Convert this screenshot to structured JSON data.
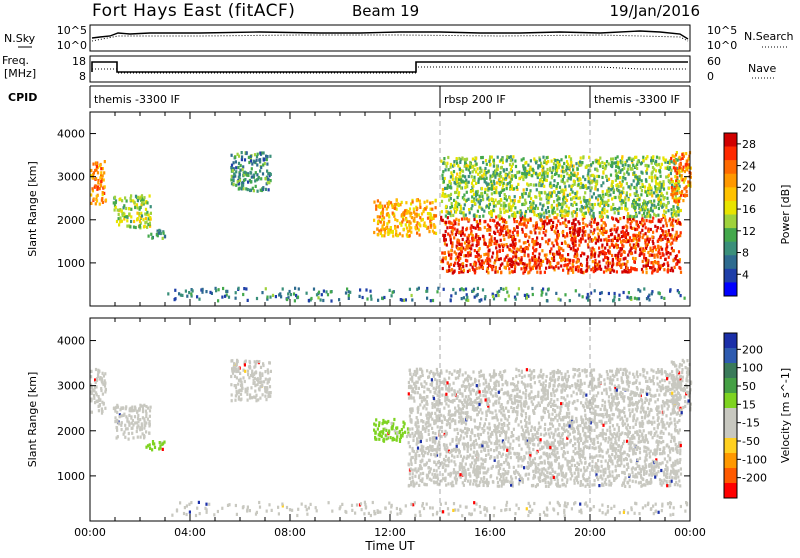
{
  "header": {
    "radar_title": "Fort Hays East (fitACF)",
    "beam": "Beam 19",
    "date": "19/Jan/2016"
  },
  "time_axis": {
    "label": "Time UT",
    "ticks": [
      "00:00",
      "04:00",
      "08:00",
      "12:00",
      "16:00",
      "20:00",
      "00:00"
    ]
  },
  "cpid": {
    "label": "CPID",
    "segments": [
      {
        "start_h": 0,
        "end_h": 14,
        "text": "themis -3300 IF"
      },
      {
        "start_h": 14,
        "end_h": 20,
        "text": "rbsp 200 IF"
      },
      {
        "start_h": 20,
        "end_h": 24,
        "text": "themis -3300 IF"
      }
    ]
  },
  "noise_panel": {
    "left_label": "N.Sky",
    "left_ticks": [
      "10^5",
      "10^0"
    ],
    "right_ticks": [
      "10^5",
      "10^0"
    ],
    "right_label": "N.Search"
  },
  "freq_panel": {
    "left_label_1": "Freq.",
    "left_label_2": "[MHz]",
    "left_ticks": [
      "18",
      "8"
    ],
    "right_ticks": [
      "60",
      "0"
    ],
    "right_label": "Nave"
  },
  "power_colorbar": {
    "label": "Power [dB]",
    "ticks": [
      "28",
      "24",
      "20",
      "16",
      "12",
      "8",
      "4"
    ],
    "colors": [
      "#d00000",
      "#ff2a00",
      "#ff6a00",
      "#ff9800",
      "#ffc200",
      "#e8e400",
      "#9fd23c",
      "#43a84b",
      "#3a8f7a",
      "#2e6b8f",
      "#1f3fa8",
      "#0000ff"
    ]
  },
  "velocity_colorbar": {
    "label": "Velocity [m s^-1]",
    "ticks": [
      "200",
      "100",
      "50",
      "15",
      "-15",
      "-50",
      "-100",
      "-200"
    ],
    "colors": [
      "#1b2fa8",
      "#2e5bb0",
      "#3a7a5a",
      "#45a045",
      "#7ed321",
      "#c8c8c0",
      "#c8c8c0",
      "#ffd020",
      "#ff9800",
      "#ff5a00",
      "#ff0000"
    ]
  },
  "chart_data": [
    {
      "type": "heatmap",
      "title": "Power",
      "xlabel": "Time UT",
      "ylabel": "Slant Range [km]",
      "x_range_hours": [
        0,
        24
      ],
      "ylim": [
        0,
        4500
      ],
      "y_ticks": [
        1000,
        2000,
        3000,
        4000
      ],
      "colorbar_range_db": [
        0,
        30
      ],
      "scatter_regions": [
        {
          "t0": 0.0,
          "t1": 0.6,
          "r0": 2400,
          "r1": 3400,
          "power_db": 22
        },
        {
          "t0": 0.9,
          "t1": 2.4,
          "r0": 1850,
          "r1": 2600,
          "power_db": 14
        },
        {
          "t0": 2.2,
          "t1": 3.0,
          "r0": 1600,
          "r1": 1800,
          "power_db": 10
        },
        {
          "t0": 5.6,
          "t1": 7.2,
          "r0": 2700,
          "r1": 3600,
          "power_db": 9
        },
        {
          "t0": 11.3,
          "t1": 13.8,
          "r0": 1650,
          "r1": 2500,
          "power_db": 20
        },
        {
          "t0": 14.0,
          "t1": 23.6,
          "r0": 800,
          "r1": 2100,
          "power_db": 26
        },
        {
          "t0": 14.0,
          "t1": 23.6,
          "r0": 2100,
          "r1": 3500,
          "power_db": 13
        },
        {
          "t0": 23.2,
          "t1": 24.0,
          "r0": 2400,
          "r1": 3600,
          "power_db": 22
        },
        {
          "t0": 3.0,
          "t1": 24.0,
          "r0": 150,
          "r1": 450,
          "power_db": 8
        }
      ]
    },
    {
      "type": "heatmap",
      "title": "Velocity",
      "xlabel": "Time UT",
      "ylabel": "Slant Range [km]",
      "x_range_hours": [
        0,
        24
      ],
      "ylim": [
        0,
        4500
      ],
      "y_ticks": [
        1000,
        2000,
        3000,
        4000
      ],
      "colorbar_range_ms": [
        -200,
        200
      ],
      "scatter_regions": [
        {
          "t0": 0.0,
          "t1": 0.6,
          "r0": 2400,
          "r1": 3400,
          "velocity": 0
        },
        {
          "t0": 0.9,
          "t1": 2.4,
          "r0": 1850,
          "r1": 2600,
          "velocity": 0
        },
        {
          "t0": 2.2,
          "t1": 3.0,
          "r0": 1600,
          "r1": 1800,
          "velocity": 30
        },
        {
          "t0": 5.6,
          "t1": 7.2,
          "r0": 2700,
          "r1": 3600,
          "velocity": -40
        },
        {
          "t0": 11.3,
          "t1": 12.7,
          "r0": 1800,
          "r1": 2300,
          "velocity": 30
        },
        {
          "t0": 12.7,
          "t1": 23.6,
          "r0": 800,
          "r1": 3400,
          "velocity": 0
        },
        {
          "t0": 23.2,
          "t1": 24.0,
          "r0": 2400,
          "r1": 3600,
          "velocity": -40
        },
        {
          "t0": 3.0,
          "t1": 24.0,
          "r0": 150,
          "r1": 450,
          "velocity": -40
        }
      ]
    }
  ]
}
